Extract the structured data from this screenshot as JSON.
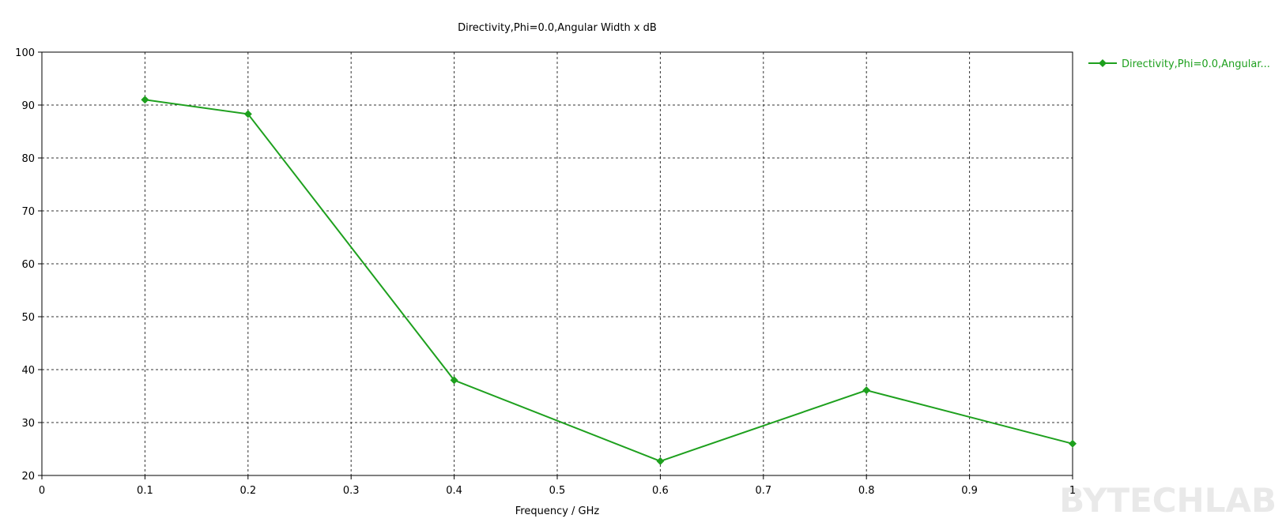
{
  "chart_data": {
    "type": "line",
    "title": "Directivity,Phi=0.0,Angular Width x dB",
    "xlabel": "Frequency / GHz",
    "ylabel": "",
    "xlim": [
      0,
      1
    ],
    "ylim": [
      20,
      100
    ],
    "x_ticks": [
      "0",
      "0.1",
      "0.2",
      "0.3",
      "0.4",
      "0.5",
      "0.6",
      "0.7",
      "0.8",
      "0.9",
      "1"
    ],
    "y_ticks": [
      "20",
      "30",
      "40",
      "50",
      "60",
      "70",
      "80",
      "90",
      "100"
    ],
    "grid": true,
    "legend_position": "top-right",
    "series": [
      {
        "name": "Directivity,Phi=0.0,Angular...",
        "color": "#1ea01e",
        "marker": "diamond",
        "x": [
          0.1,
          0.2,
          0.4,
          0.6,
          0.8,
          1.0
        ],
        "y": [
          91.0,
          88.3,
          38.0,
          22.7,
          36.1,
          26.0
        ]
      }
    ],
    "watermark": "BYTECHLAB"
  }
}
